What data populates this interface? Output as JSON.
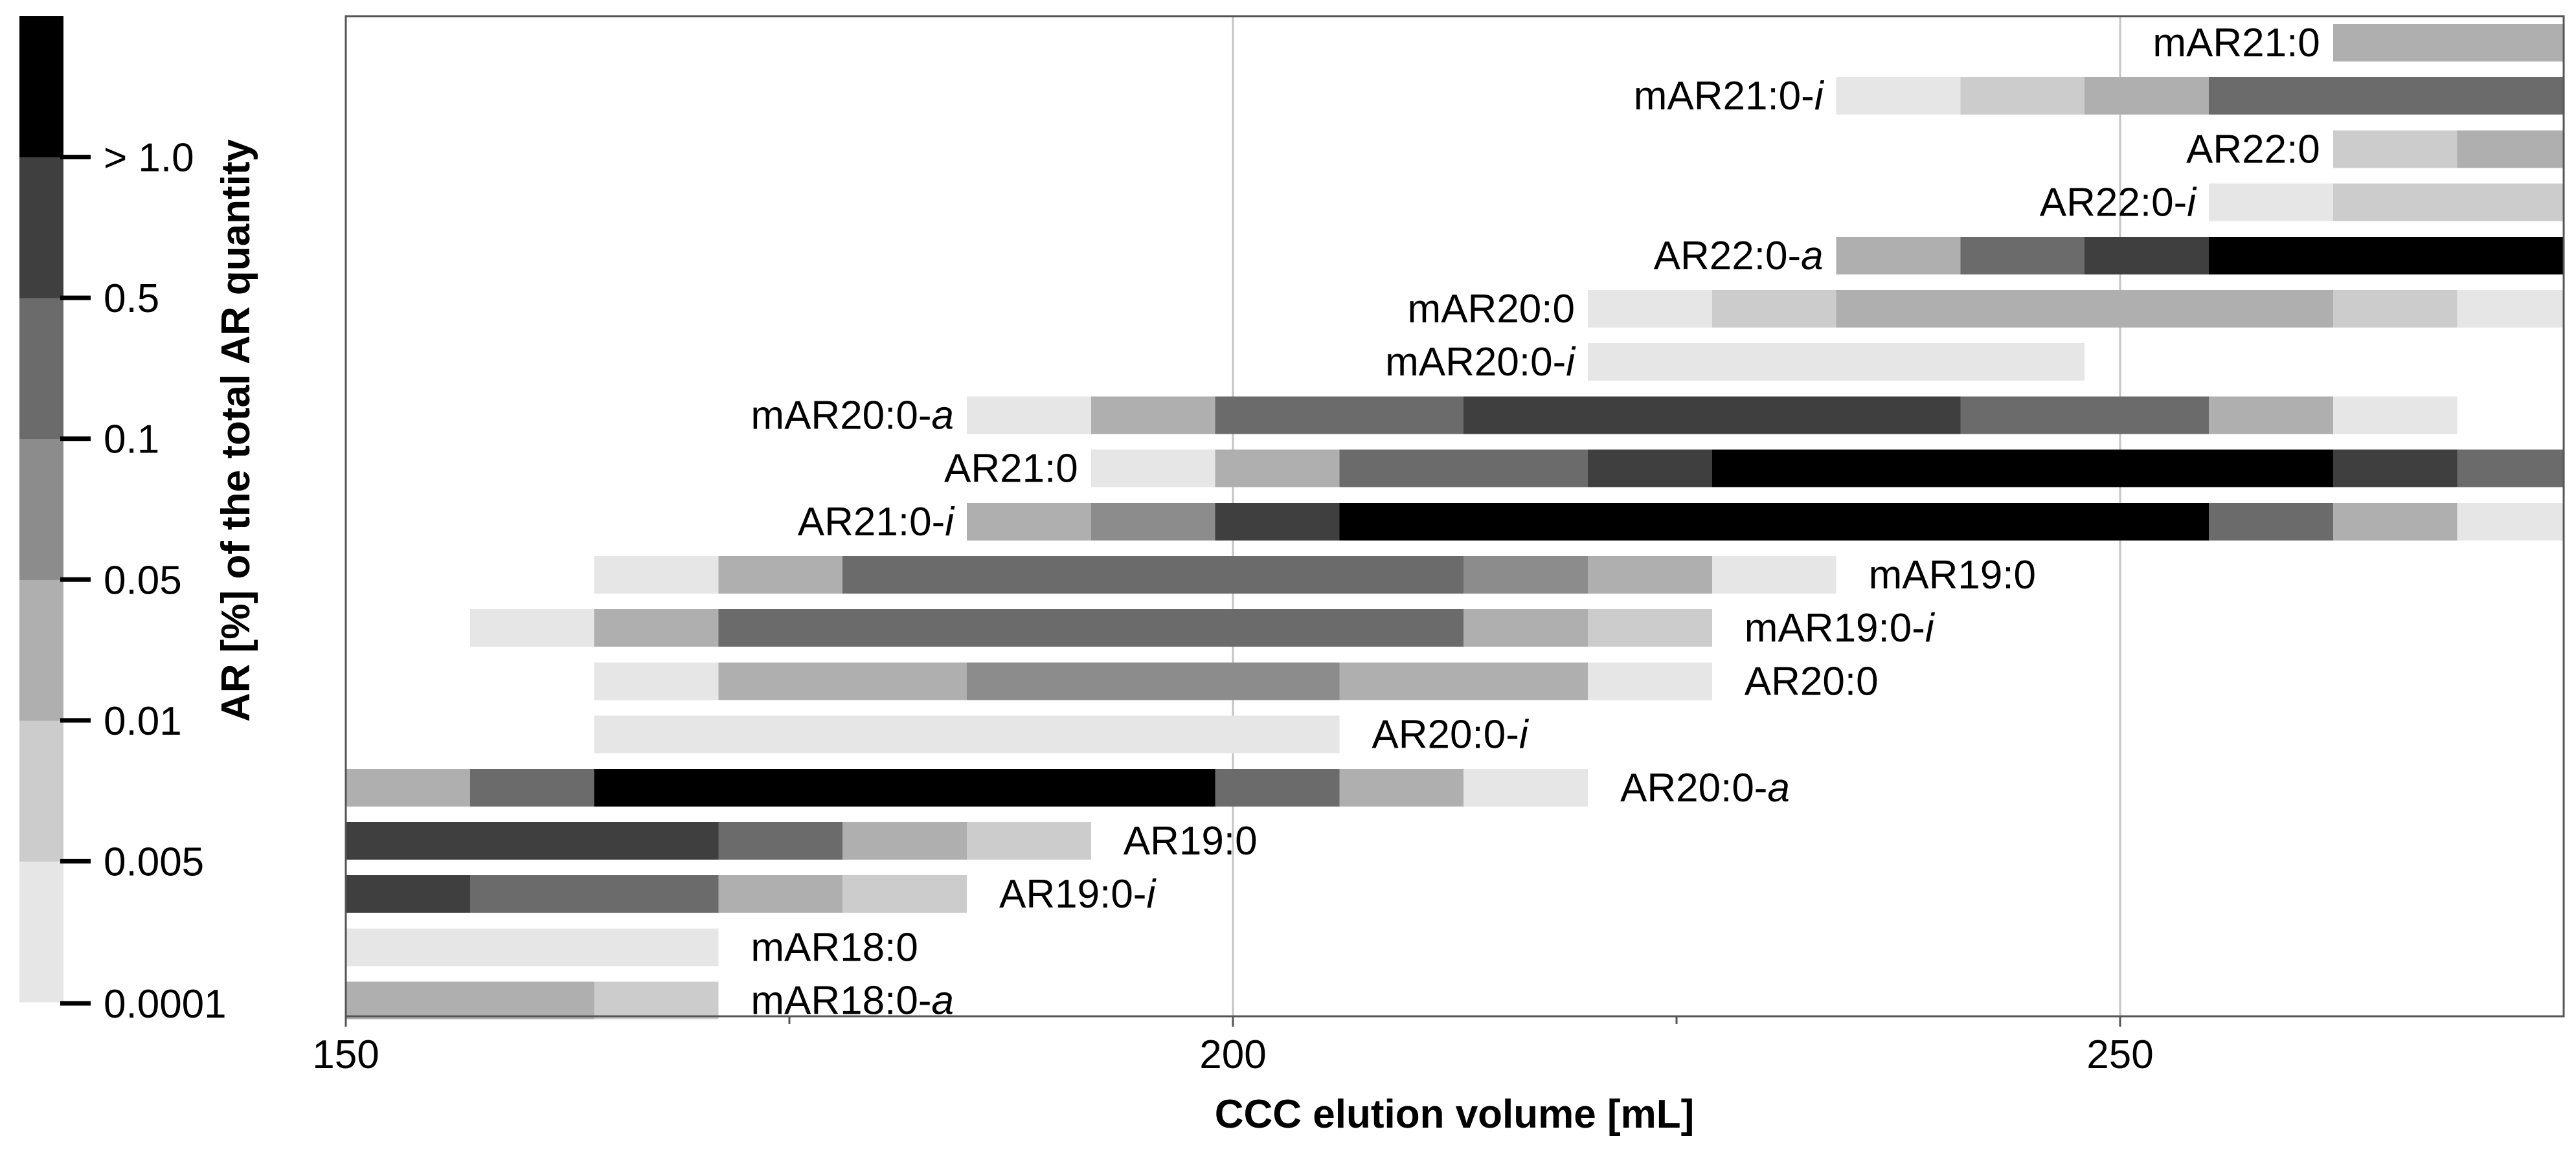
{
  "chart_data": {
    "type": "bar",
    "subtype": "horizontal-range-heatstrip",
    "xlabel": "CCC elution volume [mL]",
    "xlim": [
      150,
      275
    ],
    "xticks": [
      150,
      200,
      250
    ],
    "xticks_minor": [
      175,
      225
    ],
    "grid": "vertical",
    "bin_width_ml": 7,
    "legend": {
      "title": "AR [%] of the total AR quantity",
      "placement": "left",
      "levels": [
        {
          "label": "0.0001",
          "color": "#e6e6e6"
        },
        {
          "label": "0.005",
          "color": "#cccccc"
        },
        {
          "label": "0.01",
          "color": "#afafaf"
        },
        {
          "label": "0.05",
          "color": "#8c8c8c"
        },
        {
          "label": "0.1",
          "color": "#6b6b6b"
        },
        {
          "label": "0.5",
          "color": "#3f3f3f"
        },
        {
          "label": "> 1.0",
          "color": "#000000"
        }
      ]
    },
    "series": [
      {
        "name": "mAR21:0",
        "base": "mAR21:0",
        "suffix": "",
        "label_side": "left",
        "start": 262.0,
        "levels": [
          2,
          2
        ]
      },
      {
        "name": "mAR21:0-i",
        "base": "mAR21:0-",
        "suffix": "i",
        "label_side": "left",
        "start": 234.0,
        "levels": [
          0,
          1,
          2,
          4,
          4,
          4
        ]
      },
      {
        "name": "AR22:0",
        "base": "AR22:0",
        "suffix": "",
        "label_side": "left",
        "start": 262.0,
        "levels": [
          1,
          2
        ]
      },
      {
        "name": "AR22:0-i",
        "base": "AR22:0-",
        "suffix": "i",
        "label_side": "left",
        "start": 255.0,
        "levels": [
          0,
          1,
          1
        ]
      },
      {
        "name": "AR22:0-a",
        "base": "AR22:0-",
        "suffix": "a",
        "label_side": "left",
        "start": 234.0,
        "levels": [
          2,
          4,
          5,
          6,
          6,
          6
        ]
      },
      {
        "name": "mAR20:0",
        "base": "mAR20:0",
        "suffix": "",
        "label_side": "left",
        "start": 220.0,
        "levels": [
          0,
          1,
          2,
          2,
          2,
          2,
          1,
          0
        ]
      },
      {
        "name": "mAR20:0-i",
        "base": "mAR20:0-",
        "suffix": "i",
        "label_side": "left",
        "start": 220.0,
        "levels": [
          0,
          0,
          0,
          0
        ]
      },
      {
        "name": "mAR20:0-a",
        "base": "mAR20:0-",
        "suffix": "a",
        "label_side": "left",
        "start": 185.0,
        "levels": [
          0,
          2,
          4,
          4,
          5,
          5,
          5,
          5,
          4,
          4,
          2,
          0
        ]
      },
      {
        "name": "AR21:0",
        "base": "AR21:0",
        "suffix": "",
        "label_side": "left",
        "start": 192.0,
        "levels": [
          0,
          2,
          4,
          4,
          5,
          6,
          6,
          6,
          6,
          6,
          5,
          4
        ]
      },
      {
        "name": "AR21:0-i",
        "base": "AR21:0-",
        "suffix": "i",
        "label_side": "left",
        "start": 185.0,
        "levels": [
          2,
          3,
          5,
          6,
          6,
          6,
          6,
          6,
          6,
          6,
          4,
          2,
          0
        ]
      },
      {
        "name": "mAR19:0",
        "base": "mAR19:0",
        "suffix": "",
        "label_side": "right",
        "start": 164.0,
        "levels": [
          0,
          2,
          4,
          4,
          4,
          4,
          4,
          3,
          2,
          0
        ]
      },
      {
        "name": "mAR19:0-i",
        "base": "mAR19:0-",
        "suffix": "i",
        "label_side": "right",
        "start": 157.0,
        "levels": [
          0,
          2,
          4,
          4,
          4,
          4,
          4,
          4,
          2,
          1
        ]
      },
      {
        "name": "AR20:0",
        "base": "AR20:0",
        "suffix": "",
        "label_side": "right",
        "start": 164.0,
        "levels": [
          0,
          2,
          2,
          3,
          3,
          3,
          2,
          2,
          0
        ]
      },
      {
        "name": "AR20:0-i",
        "base": "AR20:0-",
        "suffix": "i",
        "label_side": "right",
        "start": 164.0,
        "levels": [
          0,
          0,
          0,
          0,
          0,
          0
        ]
      },
      {
        "name": "AR20:0-a",
        "base": "AR20:0-",
        "suffix": "a",
        "label_side": "right",
        "start": 150.0,
        "levels": [
          2,
          4,
          6,
          6,
          6,
          6,
          6,
          4,
          2,
          0
        ]
      },
      {
        "name": "AR19:0",
        "base": "AR19:0",
        "suffix": "",
        "label_side": "right",
        "start": 150.0,
        "levels": [
          5,
          5,
          5,
          4,
          2,
          1
        ]
      },
      {
        "name": "AR19:0-i",
        "base": "AR19:0-",
        "suffix": "i",
        "label_side": "right",
        "start": 150.0,
        "levels": [
          5,
          4,
          4,
          2,
          1
        ]
      },
      {
        "name": "mAR18:0",
        "base": "mAR18:0",
        "suffix": "",
        "label_side": "right",
        "start": 150.0,
        "levels": [
          0,
          0,
          0
        ]
      },
      {
        "name": "mAR18:0-a",
        "base": "mAR18:0-",
        "suffix": "a",
        "label_side": "right",
        "start": 150.0,
        "levels": [
          2,
          2,
          1
        ]
      }
    ]
  }
}
